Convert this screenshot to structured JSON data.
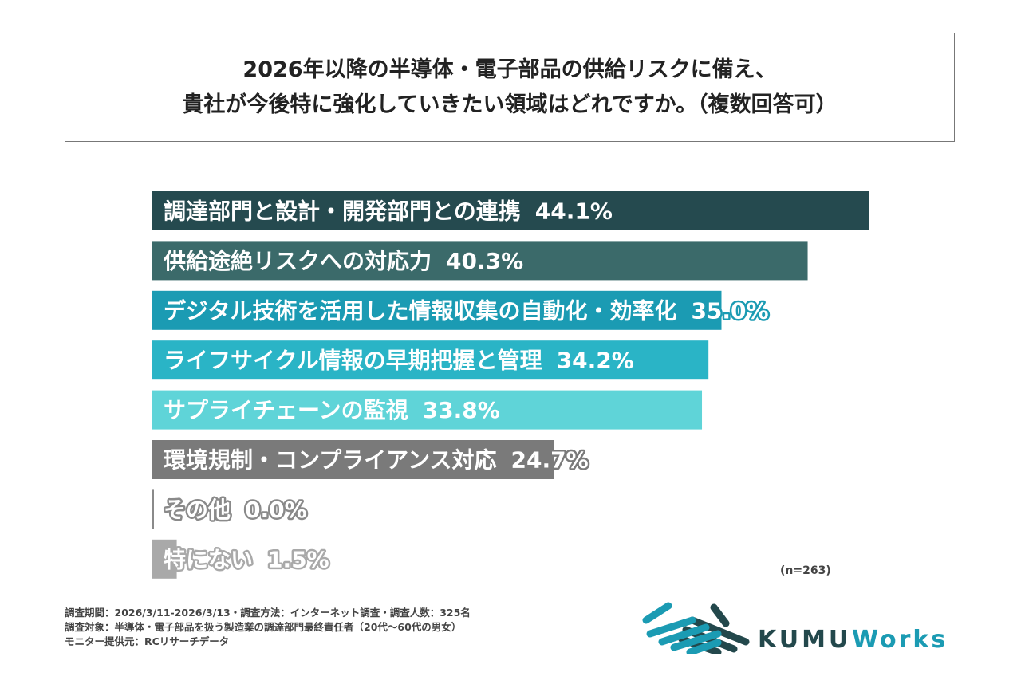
{
  "title": {
    "line1": "2026年以降の半導体・電子部品の供給リスクに備え、",
    "line2": "貴社が今後特に強化していきたい領域はどれですか。（複数回答可）"
  },
  "chart_data": {
    "type": "bar",
    "orientation": "horizontal",
    "categories": [
      "調達部門と設計・開発部門との連携",
      "供給途絶リスクへの対応力",
      "デジタル技術を活用した情報収集の自動化・効率化",
      "ライフサイクル情報の早期把握と管理",
      "サプライチェーンの監視",
      "環境規制・コンプライアンス対応",
      "その他",
      "特にない"
    ],
    "values": [
      44.1,
      40.3,
      35.0,
      34.2,
      33.8,
      24.7,
      0.0,
      1.5
    ],
    "value_labels": [
      "44.1%",
      "40.3%",
      "35.0%",
      "34.2%",
      "33.8%",
      "24.7%",
      "0.0%",
      "1.5%"
    ],
    "colors": [
      "#254a4f",
      "#3b6a6a",
      "#1b9bb3",
      "#2ab4c6",
      "#5fd4d8",
      "#7a7a7a",
      "#8a8a8a",
      "#a9a9a9"
    ],
    "unit": "%",
    "grid": false
  },
  "sample_size": "(n=263)",
  "footer": {
    "line1": "調査期間：2026/3/11-2026/3/13・調査方法：インターネット調査・調査人数：325名",
    "line2": "調査対象：半導体・電子部品を扱う製造業の調達部門最終責任者（20代～60代の男女）",
    "line3": "モニター提供元：RCリサーチデータ"
  },
  "logo": {
    "text1": "KUMU",
    "text2": "Works",
    "color_dark": "#23484c",
    "color_accent": "#1b9bb3"
  }
}
